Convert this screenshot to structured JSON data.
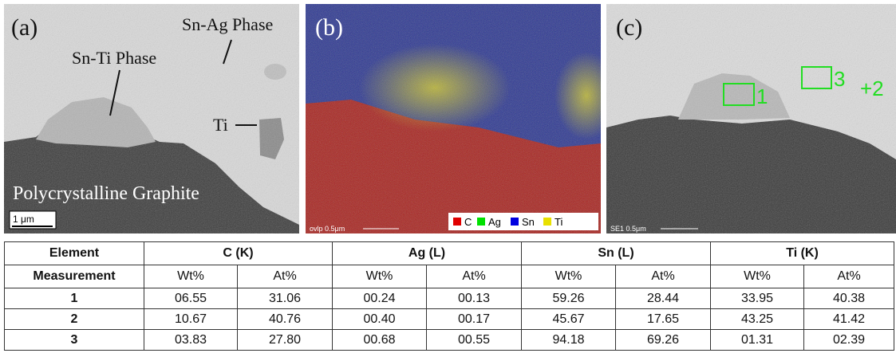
{
  "panels": {
    "a": {
      "label": "(a)",
      "annotations": [
        "Sn-Ag Phase",
        "Sn-Ti Phase",
        "Ti"
      ],
      "caption": "Polycrystalline Graphite",
      "scale_bar": "1 μm"
    },
    "b": {
      "label": "(b)",
      "scale_bar": "ovlp 0.5μm",
      "legend": [
        "C",
        "Ag",
        "Sn",
        "Ti"
      ]
    },
    "c": {
      "label": "(c)",
      "scale_bar": "SE1 0.5μm",
      "markers": [
        "1",
        "3",
        "+2"
      ]
    }
  },
  "table": {
    "header": [
      "Element",
      "C (K)",
      "Ag (L)",
      "Sn (L)",
      "Ti (K)"
    ],
    "subheader": [
      "Measurement",
      "Wt%",
      "At%",
      "Wt%",
      "At%",
      "Wt%",
      "At%",
      "Wt%",
      "At%"
    ],
    "rows": [
      [
        "1",
        "06.55",
        "31.06",
        "00.24",
        "00.13",
        "59.26",
        "28.44",
        "33.95",
        "40.38"
      ],
      [
        "2",
        "10.67",
        "40.76",
        "00.40",
        "00.17",
        "45.67",
        "17.65",
        "43.25",
        "41.42"
      ],
      [
        "3",
        "03.83",
        "27.80",
        "00.68",
        "00.55",
        "94.18",
        "69.26",
        "01.31",
        "02.39"
      ]
    ]
  }
}
